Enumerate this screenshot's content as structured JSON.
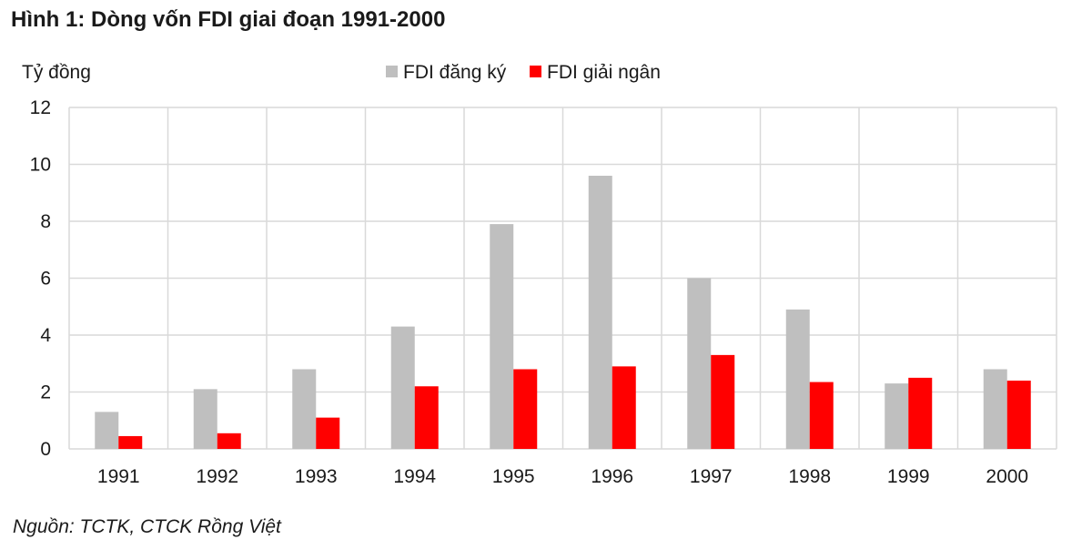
{
  "title": "Hình 1: Dòng vốn FDI giai đoạn 1991-2000",
  "source": "Nguồn: TCTK, CTCK Rồng Việt",
  "chart_data": {
    "type": "bar",
    "title": "Hình 1: Dòng vốn FDI giai đoạn 1991-2000",
    "ylabel": "Tỷ đồng",
    "xlabel": "",
    "categories": [
      "1991",
      "1992",
      "1993",
      "1994",
      "1995",
      "1996",
      "1997",
      "1998",
      "1999",
      "2000"
    ],
    "series": [
      {
        "name": "FDI đăng ký",
        "color": "#bfbfbf",
        "values": [
          1.3,
          2.1,
          2.8,
          4.3,
          7.9,
          9.6,
          6.0,
          4.9,
          2.3,
          2.8
        ]
      },
      {
        "name": "FDI giải ngân",
        "color": "#ff0000",
        "values": [
          0.45,
          0.55,
          1.1,
          2.2,
          2.8,
          2.9,
          3.3,
          2.35,
          2.5,
          2.4
        ]
      }
    ],
    "ylim": [
      0,
      12
    ],
    "yticks": [
      0,
      2,
      4,
      6,
      8,
      10,
      12
    ],
    "grid": true,
    "legend": "top"
  }
}
